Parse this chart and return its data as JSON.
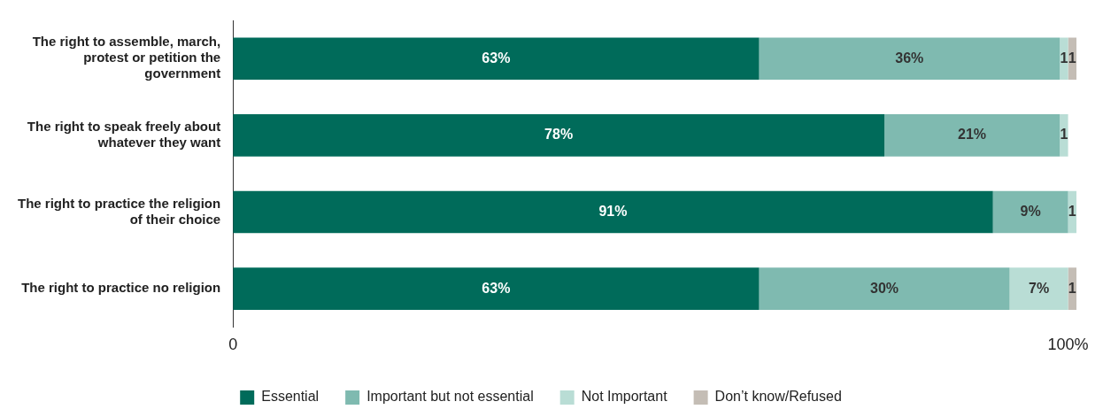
{
  "chart_data": {
    "type": "bar",
    "orientation": "horizontal",
    "stacked": true,
    "categories": [
      "The right to assemble, march, protest or petition the government",
      "The right to speak freely about whatever they want",
      "The right to practice the religion of their choice",
      "The right to practice no religion"
    ],
    "series": [
      {
        "name": "Essential",
        "color": "#006b5a",
        "values": [
          63,
          78,
          91,
          63
        ],
        "value_labels": [
          "63%",
          "78%",
          "91%",
          "63%"
        ]
      },
      {
        "name": "Important but not essential",
        "color": "#7fbab0",
        "values": [
          36,
          21,
          9,
          30
        ],
        "value_labels": [
          "36%",
          "21%",
          "9%",
          "30%"
        ]
      },
      {
        "name": "Not Important",
        "color": "#b9ddd5",
        "values": [
          1,
          1,
          1,
          7
        ],
        "value_labels": [
          "1",
          "1",
          "1",
          "7%"
        ]
      },
      {
        "name": "Don’t know/Refused",
        "color": "#c4bdb5",
        "values": [
          1,
          null,
          null,
          1
        ],
        "value_labels": [
          "1",
          null,
          null,
          "1"
        ]
      }
    ],
    "xlim": [
      0,
      101
    ],
    "xticks": [
      0,
      {
        "value": 100,
        "label": "100%"
      }
    ],
    "grid": false,
    "legend": "bottom"
  }
}
